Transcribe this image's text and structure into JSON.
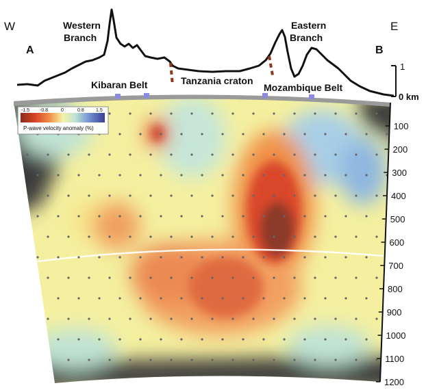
{
  "directions": {
    "west": "W",
    "east": "E"
  },
  "profile_ends": {
    "start": "A",
    "end": "B"
  },
  "rift_labels": {
    "western_line1": "Western",
    "western_line2": "Branch",
    "eastern_line1": "Eastern",
    "eastern_line2": "Branch"
  },
  "region_labels": {
    "kibaran": "Kibaran Belt",
    "tanzania": "Tanzania craton",
    "mozambique": "Mozambique Belt"
  },
  "elevation_scale": {
    "top_tick": "1",
    "zero_label": "0 km"
  },
  "depth_ticks": [
    "100",
    "200",
    "300",
    "400",
    "500",
    "600",
    "700",
    "800",
    "900",
    "1000",
    "1100",
    "1200"
  ],
  "legend": {
    "title": "P-wave velocity anomaly (%)",
    "ticks": [
      "-1.5",
      "-0.8",
      "0",
      "0.8",
      "1.5"
    ],
    "colors": [
      "#8b2a1a",
      "#d9462a",
      "#f0914a",
      "#f7d96a",
      "#f4f2a8",
      "#bfe3d4",
      "#8fb8e0",
      "#5a6fb8",
      "#3b3f96"
    ]
  }
}
